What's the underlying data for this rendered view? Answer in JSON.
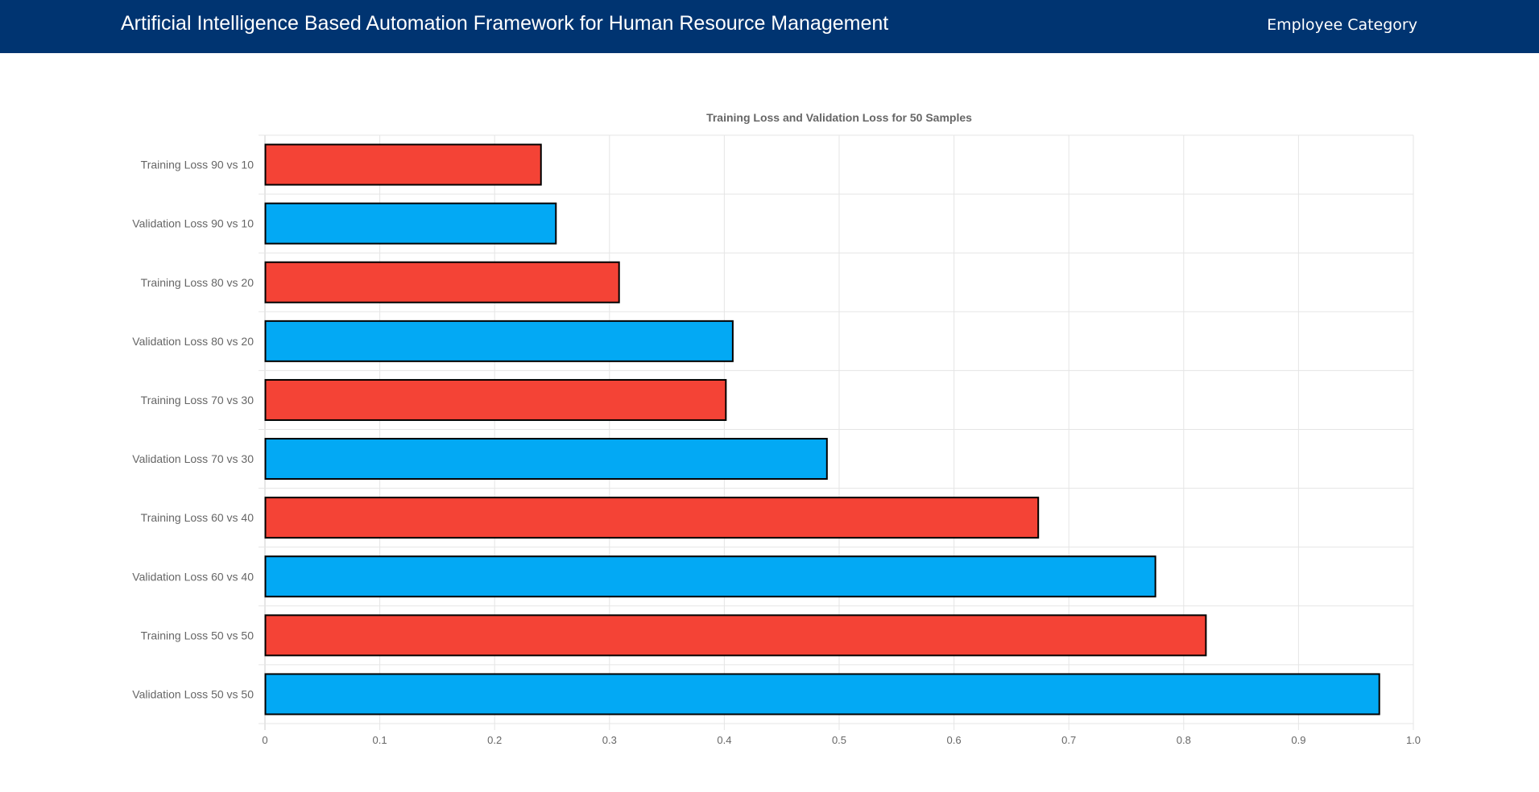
{
  "header": {
    "title": "Artificial Intelligence Based Automation Framework for Human Resource Management",
    "nav_link": "Employee Category",
    "background": "#003471"
  },
  "chart_data": {
    "type": "bar",
    "orientation": "horizontal",
    "title": "Training Loss and Validation Loss for 50 Samples",
    "xlabel": "",
    "ylabel": "",
    "xlim": [
      0,
      1.0
    ],
    "x_ticks": [
      "0",
      "0.1",
      "0.2",
      "0.3",
      "0.4",
      "0.5",
      "0.6",
      "0.7",
      "0.8",
      "0.9",
      "1.0"
    ],
    "grid": true,
    "categories": [
      "Training Loss 90 vs 10",
      "Validation Loss 90 vs 10",
      "Training Loss 80 vs 20",
      "Validation Loss 80 vs 20",
      "Training Loss 70 vs 30",
      "Validation Loss 70 vs 30",
      "Training Loss 60 vs 40",
      "Validation Loss 60 vs 40",
      "Training Loss 50 vs 50",
      "Validation Loss 50 vs 50"
    ],
    "values": [
      0.24,
      0.253,
      0.308,
      0.407,
      0.401,
      0.489,
      0.673,
      0.775,
      0.819,
      0.97
    ],
    "colors": [
      "#f44336",
      "#03a9f4",
      "#f44336",
      "#03a9f4",
      "#f44336",
      "#03a9f4",
      "#f44336",
      "#03a9f4",
      "#f44336",
      "#03a9f4"
    ],
    "border_color": "#000000"
  }
}
